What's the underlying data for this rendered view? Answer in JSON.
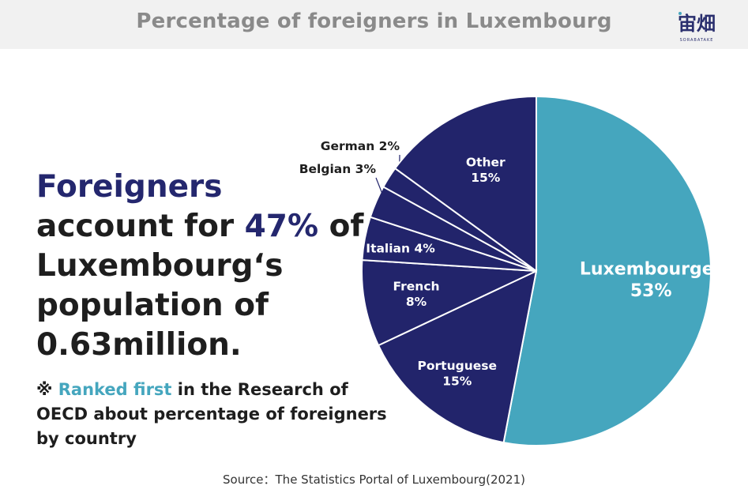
{
  "header": {
    "title": "Percentage of foreigners in Luxembourg",
    "logo_text": "宙畑",
    "logo_subtext": "SORABATAKE"
  },
  "headline": {
    "part1": "Foreigners",
    "part2": "account for ",
    "highlight": "47%",
    "part3": " of Luxembourg‘s population of 0.63million."
  },
  "note": {
    "mark": "※ ",
    "highlight": "Ranked first",
    "rest": " in the Research of OECD about percentage of foreigners by country"
  },
  "source": "Source：The Statistics Portal of Luxembourg(2021)",
  "colors": {
    "teal": "#45a6be",
    "navy": "#22246b",
    "title_gray": "#8a8a8a"
  },
  "chart_data": {
    "type": "pie",
    "title": "Percentage of foreigners in Luxembourg",
    "slices": [
      {
        "label": "Luxembourger",
        "value": 53,
        "value_label": "53%",
        "color": "#45a6be"
      },
      {
        "label": "Portuguese",
        "value": 15,
        "value_label": "15%",
        "color": "#22246b"
      },
      {
        "label": "French",
        "value": 8,
        "value_label": "8%",
        "color": "#22246b"
      },
      {
        "label": "Italian",
        "value": 4,
        "value_label": "4%",
        "color": "#22246b"
      },
      {
        "label": "Belgian",
        "value": 3,
        "value_label": "3%",
        "color": "#22246b"
      },
      {
        "label": "German",
        "value": 2,
        "value_label": "2%",
        "color": "#22246b"
      },
      {
        "label": "Other",
        "value": 15,
        "value_label": "15%",
        "color": "#22246b"
      }
    ]
  }
}
